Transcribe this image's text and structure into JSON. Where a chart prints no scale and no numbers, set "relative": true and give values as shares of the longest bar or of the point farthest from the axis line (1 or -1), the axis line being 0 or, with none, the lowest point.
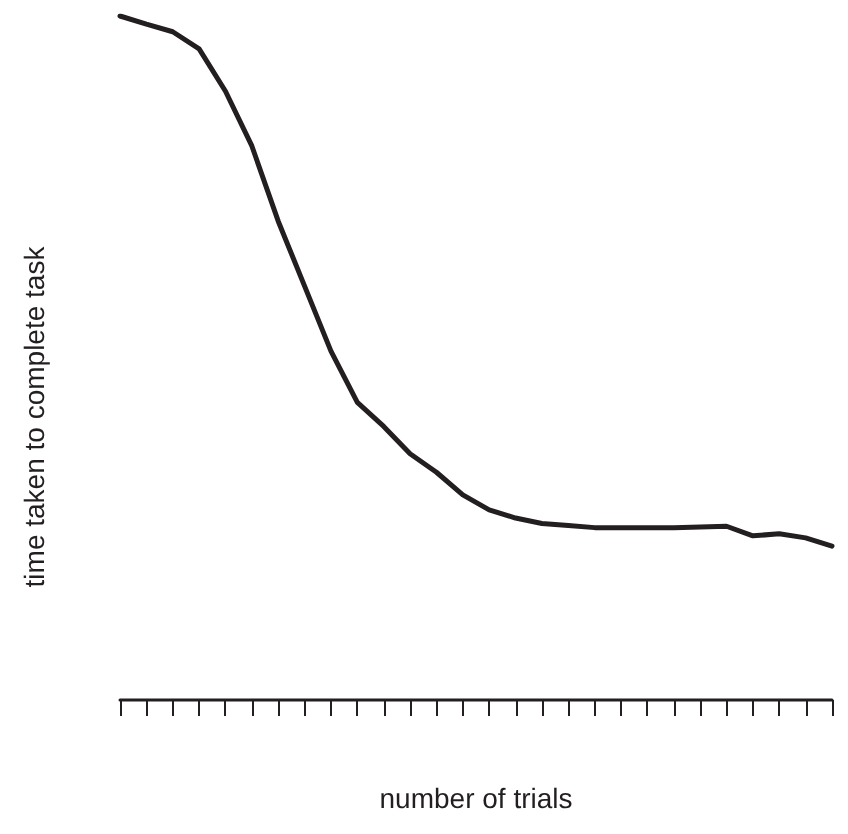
{
  "chart_data": {
    "type": "line",
    "relative": true,
    "xlabel": "number of trials",
    "ylabel": "time taken to complete task",
    "grid": false,
    "marker": "none",
    "line_style": "solid",
    "categories": [
      null,
      null,
      null,
      null,
      null,
      null,
      null,
      null,
      null,
      null,
      null,
      null,
      null,
      null,
      null,
      null,
      null,
      null,
      null,
      null,
      null,
      null,
      null,
      null,
      null,
      null,
      null,
      null
    ],
    "series": [
      {
        "color": "#231f20",
        "values": [
          1.0,
          0.988,
          0.977,
          0.952,
          0.89,
          0.81,
          0.7,
          0.605,
          0.51,
          0.435,
          0.4,
          0.36,
          0.333,
          0.3,
          0.278,
          0.266,
          0.258,
          0.255,
          0.252,
          0.252,
          0.252,
          0.252,
          0.253,
          0.254,
          0.24,
          0.243,
          0.237,
          0.225
        ]
      }
    ]
  }
}
